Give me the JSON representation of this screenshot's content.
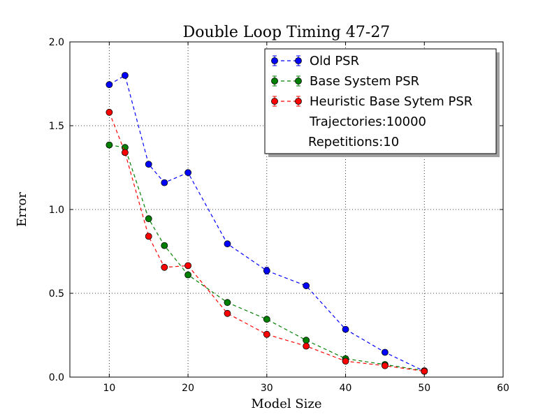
{
  "chart_data": {
    "type": "line",
    "title": "Double Loop Timing 47-27",
    "xlabel": "Model Size",
    "ylabel": "Error",
    "xlim": [
      5,
      60
    ],
    "ylim": [
      0,
      2.0
    ],
    "xticks": [
      10,
      20,
      30,
      40,
      50,
      60
    ],
    "yticks": [
      0.0,
      0.5,
      1.0,
      1.5,
      2.0
    ],
    "xtick_labels": [
      "10",
      "20",
      "30",
      "40",
      "50",
      "60"
    ],
    "ytick_labels": [
      "0.0",
      "0.5",
      "1.0",
      "1.5",
      "2.0"
    ],
    "grid": true,
    "legend_position": "top-right",
    "legend_notes": [
      "Trajectories:10000",
      "Repetitions:10"
    ],
    "series": [
      {
        "name": "Old PSR",
        "color": "#0000ff",
        "marker": "circle",
        "linestyle": "dashed",
        "x": [
          10,
          12,
          15,
          17,
          20,
          25,
          30,
          35,
          40,
          45,
          50
        ],
        "y": [
          1.745,
          1.8,
          1.27,
          1.16,
          1.22,
          0.795,
          0.635,
          0.545,
          0.285,
          0.148,
          0.035
        ],
        "yerr": [
          0.01,
          0.01,
          0.01,
          0.01,
          0.01,
          0.01,
          0.02,
          0.01,
          0.01,
          0.01,
          0.005
        ]
      },
      {
        "name": "Base System PSR",
        "color": "#008000",
        "marker": "circle",
        "linestyle": "dashed",
        "x": [
          10,
          12,
          15,
          17,
          20,
          25,
          30,
          35,
          40,
          45,
          50
        ],
        "y": [
          1.385,
          1.37,
          0.945,
          0.785,
          0.61,
          0.445,
          0.345,
          0.22,
          0.11,
          0.075,
          0.038
        ],
        "yerr": [
          0.01,
          0.01,
          0.01,
          0.01,
          0.01,
          0.01,
          0.01,
          0.01,
          0.01,
          0.005,
          0.005
        ]
      },
      {
        "name": "Heuristic Base Sytem PSR",
        "color": "#ff0000",
        "marker": "circle",
        "linestyle": "dashed",
        "x": [
          10,
          12,
          15,
          17,
          20,
          25,
          30,
          35,
          40,
          45,
          50
        ],
        "y": [
          1.58,
          1.34,
          0.84,
          0.655,
          0.665,
          0.38,
          0.255,
          0.185,
          0.095,
          0.068,
          0.035
        ],
        "yerr": [
          0.01,
          0.01,
          0.01,
          0.01,
          0.01,
          0.01,
          0.015,
          0.01,
          0.01,
          0.005,
          0.005
        ]
      }
    ]
  }
}
